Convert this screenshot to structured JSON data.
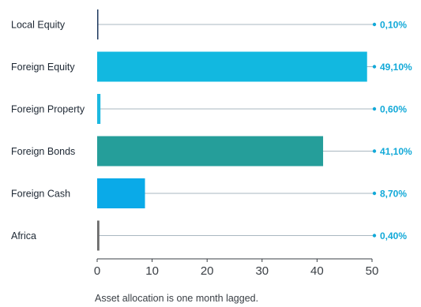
{
  "chart_data": {
    "type": "bar",
    "orientation": "horizontal",
    "categories": [
      "Local Equity",
      "Foreign Equity",
      "Foreign Property",
      "Foreign Bonds",
      "Foreign Cash",
      "Africa"
    ],
    "values": [
      0.1,
      49.1,
      0.6,
      41.1,
      8.7,
      0.4
    ],
    "value_labels": [
      "0,10%",
      "49,10%",
      "0,60%",
      "41,10%",
      "8,70%",
      "0,40%"
    ],
    "bar_colors": [
      "#1f3a5f",
      "#12b8e0",
      "#1cb8e0",
      "#259e9a",
      "#0aaae8",
      "#6b6b6b"
    ],
    "leader_color": "#a9b7c0",
    "dot_color": "#12a9d8",
    "label_color": "#12a9d8",
    "xlim": [
      0,
      50
    ],
    "xticks": [
      0,
      10,
      20,
      30,
      40,
      50
    ],
    "tick_labels": [
      "0",
      "10",
      "20",
      "30",
      "40",
      "50"
    ],
    "title": "",
    "xlabel": "",
    "ylabel": "",
    "grid": false,
    "footnote": "Asset allocation is one month lagged."
  }
}
